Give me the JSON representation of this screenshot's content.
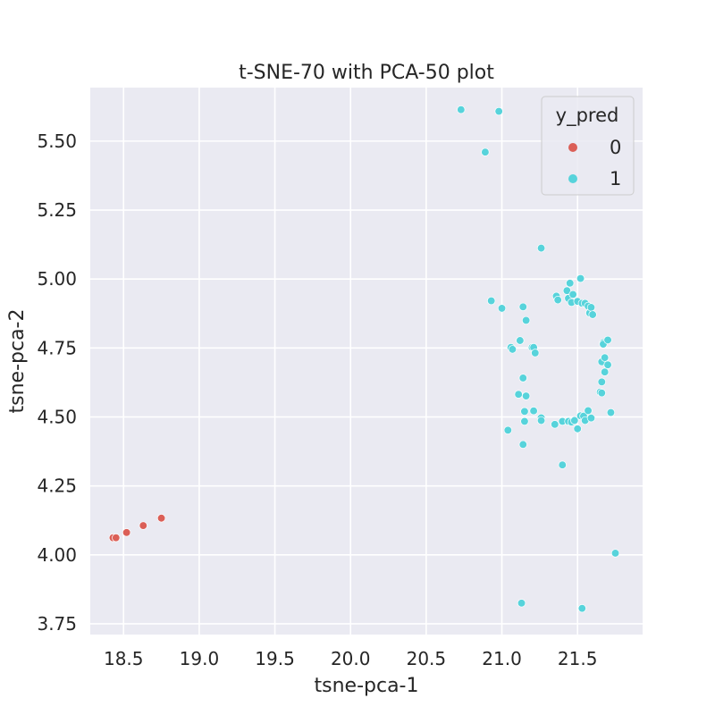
{
  "chart_data": {
    "type": "scatter",
    "title": "t-SNE-70 with PCA-50 plot",
    "xlabel": "tsne-pca-1",
    "ylabel": "tsne-pca-2",
    "xlim": [
      18.28,
      21.93
    ],
    "ylim": [
      3.711,
      5.694
    ],
    "xticks": [
      18.5,
      19.0,
      19.5,
      20.0,
      20.5,
      21.0,
      21.5
    ],
    "xtick_labels": [
      "18.5",
      "19.0",
      "19.5",
      "20.0",
      "20.5",
      "21.0",
      "21.5"
    ],
    "yticks": [
      3.75,
      4.0,
      4.25,
      4.5,
      4.75,
      5.0,
      5.25,
      5.5
    ],
    "ytick_labels": [
      "3.75",
      "4.00",
      "4.25",
      "4.50",
      "4.75",
      "5.00",
      "5.25",
      "5.50"
    ],
    "grid": true,
    "legend": {
      "title": "y_pred",
      "placement": "top-right"
    },
    "series": [
      {
        "name": "0",
        "color": "#db5f57",
        "points": [
          [
            18.43,
            4.062
          ],
          [
            18.45,
            4.062
          ],
          [
            18.52,
            4.081
          ],
          [
            18.63,
            4.106
          ],
          [
            18.75,
            4.133
          ]
        ]
      },
      {
        "name": "1",
        "color": "#57d3db",
        "points": [
          [
            20.73,
            5.614
          ],
          [
            20.98,
            5.608
          ],
          [
            20.89,
            5.46
          ],
          [
            21.26,
            5.112
          ],
          [
            21.52,
            5.002
          ],
          [
            20.93,
            4.921
          ],
          [
            21.0,
            4.894
          ],
          [
            21.36,
            4.938
          ],
          [
            21.37,
            4.924
          ],
          [
            21.43,
            4.958
          ],
          [
            21.45,
            4.985
          ],
          [
            21.44,
            4.93
          ],
          [
            21.46,
            4.915
          ],
          [
            21.47,
            4.944
          ],
          [
            21.5,
            4.919
          ],
          [
            21.53,
            4.912
          ],
          [
            21.55,
            4.912
          ],
          [
            21.57,
            4.902
          ],
          [
            21.58,
            4.877
          ],
          [
            21.59,
            4.897
          ],
          [
            21.6,
            4.871
          ],
          [
            21.14,
            4.899
          ],
          [
            21.16,
            4.85
          ],
          [
            21.12,
            4.777
          ],
          [
            21.06,
            4.752
          ],
          [
            21.07,
            4.745
          ],
          [
            21.2,
            4.752
          ],
          [
            21.21,
            4.752
          ],
          [
            21.22,
            4.732
          ],
          [
            21.14,
            4.641
          ],
          [
            21.11,
            4.582
          ],
          [
            21.16,
            4.576
          ],
          [
            21.15,
            4.52
          ],
          [
            21.21,
            4.522
          ],
          [
            21.26,
            4.497
          ],
          [
            21.26,
            4.487
          ],
          [
            21.15,
            4.484
          ],
          [
            21.04,
            4.452
          ],
          [
            21.14,
            4.4
          ],
          [
            21.4,
            4.326
          ],
          [
            21.35,
            4.473
          ],
          [
            21.4,
            4.484
          ],
          [
            21.44,
            4.484
          ],
          [
            21.46,
            4.481
          ],
          [
            21.48,
            4.487
          ],
          [
            21.5,
            4.457
          ],
          [
            21.52,
            4.504
          ],
          [
            21.54,
            4.503
          ],
          [
            21.55,
            4.487
          ],
          [
            21.57,
            4.523
          ],
          [
            21.59,
            4.496
          ],
          [
            21.65,
            4.59
          ],
          [
            21.66,
            4.587
          ],
          [
            21.66,
            4.627
          ],
          [
            21.66,
            4.7
          ],
          [
            21.67,
            4.769
          ],
          [
            21.67,
            4.764
          ],
          [
            21.68,
            4.715
          ],
          [
            21.68,
            4.663
          ],
          [
            21.7,
            4.689
          ],
          [
            21.7,
            4.779
          ],
          [
            21.72,
            4.516
          ],
          [
            21.75,
            4.006
          ],
          [
            21.13,
            3.825
          ],
          [
            21.53,
            3.806
          ]
        ]
      }
    ]
  }
}
